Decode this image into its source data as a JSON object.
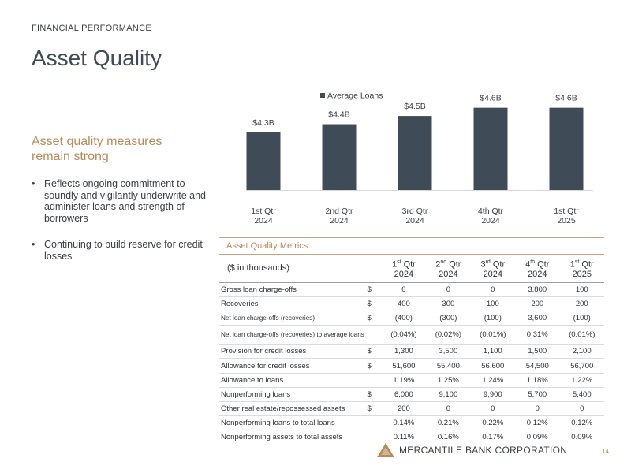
{
  "header": {
    "kicker": "FINANCIAL PERFORMANCE",
    "title": "Asset Quality"
  },
  "side": {
    "headline": "Asset quality measures remain strong",
    "bullets": [
      "Reflects ongoing commitment to soundly and vigilantly underwrite and administer loans and strength of borrowers",
      "Continuing to build reserve for credit losses"
    ]
  },
  "chart_data": {
    "type": "bar",
    "categories": [
      "1st Qtr|2024",
      "2nd Qtr|2024",
      "3rd Qtr|2024",
      "4th Qtr|2024",
      "1st Qtr|2025"
    ],
    "series": [
      {
        "name": "Average Loans",
        "values": [
          4.3,
          4.4,
          4.5,
          4.6,
          4.6
        ],
        "labels": [
          "$4.3B",
          "$4.4B",
          "$4.5B",
          "$4.6B",
          "$4.6B"
        ],
        "color": "#3f4b56"
      }
    ],
    "legend": "top-left",
    "grid": false,
    "title": "",
    "xlabel": "",
    "ylabel": ""
  },
  "metrics": {
    "title": "Asset Quality Metrics",
    "unit_header": "($ in thousands)",
    "columns": [
      {
        "ord": "1",
        "sup": "st",
        "qtr": " Qtr",
        "year": "2024"
      },
      {
        "ord": "2",
        "sup": "nd",
        "qtr": " Qtr",
        "year": "2024"
      },
      {
        "ord": "3",
        "sup": "rd",
        "qtr": " Qtr",
        "year": "2024"
      },
      {
        "ord": "4",
        "sup": "th",
        "qtr": " Qtr",
        "year": "2024"
      },
      {
        "ord": "1",
        "sup": "st",
        "qtr": " Qtr",
        "year": "2025"
      }
    ],
    "rows": [
      {
        "label": "Gross loan charge-offs",
        "cur": "$",
        "values": [
          "0",
          "0",
          "0",
          "3,800",
          "100"
        ],
        "small": false
      },
      {
        "label": "Recoveries",
        "cur": "$",
        "values": [
          "400",
          "300",
          "100",
          "200",
          "200"
        ],
        "small": false
      },
      {
        "label": "Net loan charge-offs (recoveries)",
        "cur": "$",
        "values": [
          "(400)",
          "(300)",
          "(100)",
          "3,600",
          "(100)"
        ],
        "small": true
      },
      {
        "label": "Net loan charge-offs (recoveries) to average loans",
        "cur": "",
        "values": [
          "(0.04%)",
          "(0.02%)",
          "(0.01%)",
          "0.31%",
          "(0.01%)"
        ],
        "small": true
      },
      {
        "label": "Provision for credit losses",
        "cur": "$",
        "values": [
          "1,300",
          "3,500",
          "1,100",
          "1,500",
          "2,100"
        ],
        "small": false
      },
      {
        "label": "Allowance for credit losses",
        "cur": "$",
        "values": [
          "51,600",
          "55,400",
          "56,600",
          "54,500",
          "56,700"
        ],
        "small": false
      },
      {
        "label": "Allowance to loans",
        "cur": "",
        "values": [
          "1.19%",
          "1.25%",
          "1.24%",
          "1.18%",
          "1.22%"
        ],
        "small": false
      },
      {
        "label": "Nonperforming loans",
        "cur": "$",
        "values": [
          "6,000",
          "9,100",
          "9,900",
          "5,700",
          "5,400"
        ],
        "small": false
      },
      {
        "label": "Other real estate/repossessed assets",
        "cur": "$",
        "values": [
          "200",
          "0",
          "0",
          "0",
          "0"
        ],
        "small": false
      },
      {
        "label": "Nonperforming loans to total loans",
        "cur": "",
        "values": [
          "0.14%",
          "0.21%",
          "0.22%",
          "0.12%",
          "0.12%"
        ],
        "small": false
      },
      {
        "label": "Nonperforming assets to total assets",
        "cur": "",
        "values": [
          "0.11%",
          "0.16%",
          "0.17%",
          "0.09%",
          "0.09%"
        ],
        "small": false
      }
    ]
  },
  "footer": {
    "company": "MERCANTILE BANK CORPORATION",
    "page": "14"
  },
  "colors": {
    "accent": "#b98b58",
    "bar": "#3f4b56",
    "text": "#3a3f44"
  }
}
